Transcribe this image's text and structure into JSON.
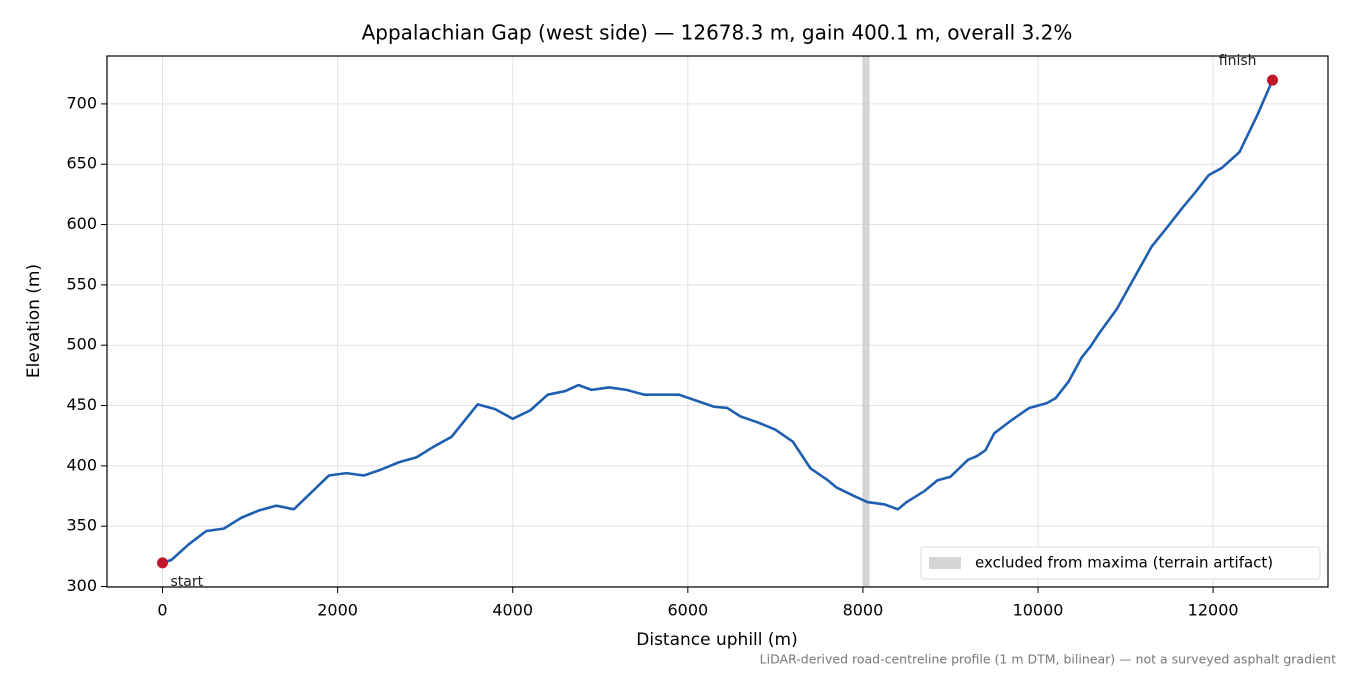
{
  "chart_data": {
    "type": "line",
    "title": "Appalachian Gap (west side) — 12678.3 m, gain 400.1 m, overall 3.2%",
    "x_label": "Distance uphill (m)",
    "y_label": "Elevation (m)",
    "note": "LiDAR-derived road-centreline profile (1 m DTM, bilinear) — not a surveyed asphalt gradient",
    "x": [
      0,
      100,
      300,
      500,
      700,
      900,
      1100,
      1300,
      1500,
      1700,
      1900,
      2100,
      2300,
      2500,
      2700,
      2900,
      3100,
      3300,
      3500,
      3600,
      3800,
      4000,
      4200,
      4400,
      4600,
      4750,
      4900,
      5100,
      5300,
      5500,
      5700,
      5900,
      6100,
      6300,
      6450,
      6600,
      6800,
      7000,
      7200,
      7400,
      7600,
      7700,
      7900,
      8050,
      8250,
      8400,
      8500,
      8700,
      8850,
      9000,
      9200,
      9300,
      9400,
      9500,
      9700,
      9900,
      10100,
      10200,
      10350,
      10500,
      10600,
      10700,
      10900,
      11100,
      11300,
      11500,
      11650,
      11800,
      11950,
      12100,
      12300,
      12500,
      12678.3
    ],
    "series": [
      {
        "color": "#1f5fb0",
        "values": [
          319.6,
          322,
          335,
          346,
          348,
          357,
          363,
          367,
          364,
          378,
          392,
          394,
          392,
          397,
          403,
          407,
          416,
          424,
          442,
          451,
          447,
          439,
          446,
          459,
          462,
          467,
          463,
          465,
          463,
          459,
          459,
          459,
          454,
          449,
          448,
          441,
          436,
          430,
          420,
          398,
          388,
          382,
          375,
          370,
          368,
          364,
          370,
          379,
          388,
          391,
          405,
          408,
          413,
          427,
          438,
          448,
          452,
          456,
          470,
          490,
          499,
          510,
          530,
          556,
          582,
          600,
          614,
          627,
          641,
          647,
          660,
          690,
          719.7
        ]
      }
    ],
    "markers": [
      {
        "label": "start",
        "x": 0,
        "y": 319.6,
        "color": "#c0182a"
      },
      {
        "label": "finish",
        "x": 12678.3,
        "y": 719.7,
        "color": "#c0182a"
      }
    ],
    "band": {
      "name": "excluded from maxima (terrain artifact)",
      "range": [
        7996,
        8076
      ],
      "color": "#cccccc"
    },
    "xlim": [
      -634,
      13312
    ],
    "ylim": [
      299.6,
      739.7
    ],
    "xticks": [
      0,
      2000,
      4000,
      6000,
      8000,
      10000,
      12000
    ],
    "yticks": [
      300,
      350,
      400,
      450,
      500,
      550,
      600,
      650,
      700
    ],
    "grid": true,
    "legend": "lower right"
  }
}
